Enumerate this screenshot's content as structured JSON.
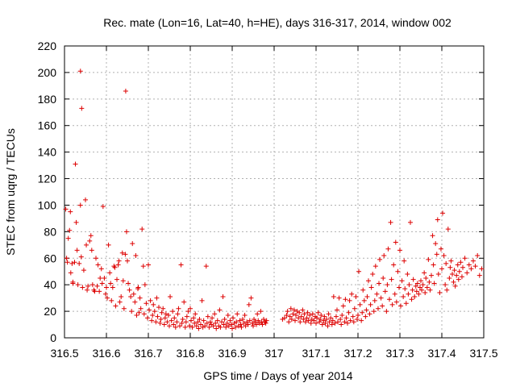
{
  "chart_data": {
    "type": "scatter",
    "title": "Rec. mate (Lon=16, Lat=40, h=HE), days 316-317, 2014, window 002",
    "xlabel": "GPS time / Days of year 2014",
    "ylabel": "STEC from uqrg / TECUs",
    "xlim": [
      316.5,
      317.5
    ],
    "ylim": [
      0,
      220
    ],
    "xticks": [
      316.5,
      316.6,
      316.7,
      316.8,
      316.9,
      317,
      317.1,
      317.2,
      317.3,
      317.4,
      317.5
    ],
    "xtick_labels": [
      "316.5",
      "316.6",
      "316.7",
      "316.8",
      "316.9",
      "317",
      "317.1",
      "317.2",
      "317.3",
      "317.4",
      "317.5"
    ],
    "yticks": [
      0,
      20,
      40,
      60,
      80,
      100,
      120,
      140,
      160,
      180,
      200,
      220
    ],
    "ytick_labels": [
      "0",
      "20",
      "40",
      "60",
      "80",
      "100",
      "120",
      "140",
      "160",
      "180",
      "200",
      "220"
    ],
    "grid": true,
    "marker": "+",
    "color": "#dd0000",
    "points": [
      [
        316.503,
        97
      ],
      [
        316.505,
        60
      ],
      [
        316.507,
        57
      ],
      [
        316.509,
        75
      ],
      [
        316.512,
        81
      ],
      [
        316.514,
        95
      ],
      [
        316.515,
        49
      ],
      [
        316.518,
        56
      ],
      [
        316.52,
        42
      ],
      [
        316.52,
        41
      ],
      [
        316.524,
        57
      ],
      [
        316.526,
        131
      ],
      [
        316.528,
        87
      ],
      [
        316.53,
        66
      ],
      [
        316.532,
        40
      ],
      [
        316.535,
        56
      ],
      [
        316.538,
        100
      ],
      [
        316.538,
        201
      ],
      [
        316.54,
        61
      ],
      [
        316.541,
        173
      ],
      [
        316.543,
        38
      ],
      [
        316.546,
        51
      ],
      [
        316.55,
        104
      ],
      [
        316.552,
        70
      ],
      [
        316.554,
        36
      ],
      [
        316.556,
        39
      ],
      [
        316.56,
        73
      ],
      [
        316.563,
        77
      ],
      [
        316.565,
        66
      ],
      [
        316.567,
        40
      ],
      [
        316.57,
        36
      ],
      [
        316.572,
        35
      ],
      [
        316.575,
        60
      ],
      [
        316.578,
        39
      ],
      [
        316.58,
        55
      ],
      [
        316.583,
        35
      ],
      [
        316.585,
        45
      ],
      [
        316.588,
        52
      ],
      [
        316.59,
        41
      ],
      [
        316.592,
        99
      ],
      [
        316.595,
        45
      ],
      [
        316.598,
        33
      ],
      [
        316.6,
        38
      ],
      [
        316.602,
        30
      ],
      [
        316.605,
        70
      ],
      [
        316.608,
        49
      ],
      [
        316.61,
        41
      ],
      [
        316.612,
        28
      ],
      [
        316.615,
        38
      ],
      [
        316.618,
        54
      ],
      [
        316.62,
        53
      ],
      [
        316.622,
        24
      ],
      [
        316.625,
        44
      ],
      [
        316.628,
        55
      ],
      [
        316.63,
        58
      ],
      [
        316.632,
        27
      ],
      [
        316.635,
        31
      ],
      [
        316.638,
        64
      ],
      [
        316.64,
        43
      ],
      [
        316.642,
        22
      ],
      [
        316.645,
        63
      ],
      [
        316.646,
        186
      ],
      [
        316.648,
        80
      ],
      [
        316.65,
        58
      ],
      [
        316.652,
        41
      ],
      [
        316.655,
        36
      ],
      [
        316.658,
        31
      ],
      [
        316.66,
        20
      ],
      [
        316.662,
        71
      ],
      [
        316.665,
        33
      ],
      [
        316.668,
        27
      ],
      [
        316.67,
        62
      ],
      [
        316.672,
        17
      ],
      [
        316.675,
        37
      ],
      [
        316.676,
        38
      ],
      [
        316.678,
        19
      ],
      [
        316.68,
        30
      ],
      [
        316.682,
        22
      ],
      [
        316.685,
        82
      ],
      [
        316.688,
        54
      ],
      [
        316.69,
        18
      ],
      [
        316.692,
        40
      ],
      [
        316.695,
        26
      ],
      [
        316.698,
        15
      ],
      [
        316.7,
        55
      ],
      [
        316.702,
        21
      ],
      [
        316.705,
        28
      ],
      [
        316.708,
        13
      ],
      [
        316.71,
        17
      ],
      [
        316.712,
        25
      ],
      [
        316.715,
        20
      ],
      [
        316.718,
        12
      ],
      [
        316.72,
        30
      ],
      [
        316.722,
        16
      ],
      [
        316.725,
        23
      ],
      [
        316.728,
        11
      ],
      [
        316.73,
        14
      ],
      [
        316.732,
        19
      ],
      [
        316.735,
        22
      ],
      [
        316.738,
        10
      ],
      [
        316.74,
        15
      ],
      [
        316.742,
        18
      ],
      [
        316.745,
        12
      ],
      [
        316.748,
        17
      ],
      [
        316.75,
        9
      ],
      [
        316.752,
        31
      ],
      [
        316.755,
        13
      ],
      [
        316.758,
        20
      ],
      [
        316.76,
        10
      ],
      [
        316.762,
        15
      ],
      [
        316.765,
        8
      ],
      [
        316.768,
        12
      ],
      [
        316.77,
        18
      ],
      [
        316.772,
        22
      ],
      [
        316.775,
        9
      ],
      [
        316.778,
        55
      ],
      [
        316.78,
        11
      ],
      [
        316.782,
        14
      ],
      [
        316.785,
        27
      ],
      [
        316.788,
        8
      ],
      [
        316.79,
        12
      ],
      [
        316.792,
        16
      ],
      [
        316.795,
        20
      ],
      [
        316.798,
        9
      ],
      [
        316.8,
        22
      ],
      [
        316.802,
        13
      ],
      [
        316.805,
        8
      ],
      [
        316.808,
        15
      ],
      [
        316.81,
        11
      ],
      [
        316.812,
        18
      ],
      [
        316.815,
        9
      ],
      [
        316.818,
        12
      ],
      [
        316.82,
        7
      ],
      [
        316.822,
        14
      ],
      [
        316.825,
        10
      ],
      [
        316.828,
        28
      ],
      [
        316.83,
        8
      ],
      [
        316.832,
        13
      ],
      [
        316.835,
        9
      ],
      [
        316.838,
        54
      ],
      [
        316.84,
        11
      ],
      [
        316.842,
        16
      ],
      [
        316.845,
        8
      ],
      [
        316.848,
        12
      ],
      [
        316.85,
        10
      ],
      [
        316.852,
        15
      ],
      [
        316.855,
        9
      ],
      [
        316.858,
        18
      ],
      [
        316.86,
        11
      ],
      [
        316.862,
        7
      ],
      [
        316.865,
        13
      ],
      [
        316.868,
        9
      ],
      [
        316.87,
        21
      ],
      [
        316.872,
        8
      ],
      [
        316.875,
        12
      ],
      [
        316.878,
        31
      ],
      [
        316.88,
        10
      ],
      [
        316.882,
        14
      ],
      [
        316.885,
        8
      ],
      [
        316.888,
        11
      ],
      [
        316.89,
        17
      ],
      [
        316.892,
        9
      ],
      [
        316.895,
        13
      ],
      [
        316.898,
        10
      ],
      [
        316.9,
        7
      ],
      [
        316.902,
        15
      ],
      [
        316.905,
        11
      ],
      [
        316.908,
        8
      ],
      [
        316.91,
        12
      ],
      [
        316.912,
        18
      ],
      [
        316.915,
        9
      ],
      [
        316.918,
        13
      ],
      [
        316.92,
        10
      ],
      [
        316.922,
        8
      ],
      [
        316.925,
        14
      ],
      [
        316.928,
        11
      ],
      [
        316.93,
        17
      ],
      [
        316.932,
        9
      ],
      [
        316.935,
        12
      ],
      [
        316.938,
        10
      ],
      [
        316.94,
        25
      ],
      [
        316.942,
        13
      ],
      [
        316.945,
        30
      ],
      [
        316.948,
        11
      ],
      [
        316.95,
        9
      ],
      [
        316.952,
        14
      ],
      [
        316.955,
        12
      ],
      [
        316.958,
        10
      ],
      [
        316.96,
        18
      ],
      [
        316.962,
        13
      ],
      [
        316.965,
        11
      ],
      [
        316.968,
        20
      ],
      [
        316.97,
        12
      ],
      [
        316.972,
        10
      ],
      [
        316.975,
        14
      ],
      [
        316.978,
        12
      ],
      [
        316.98,
        11
      ],
      [
        316.982,
        13
      ],
      [
        317.02,
        14
      ],
      [
        317.025,
        15
      ],
      [
        317.03,
        17
      ],
      [
        317.032,
        20
      ],
      [
        317.035,
        12
      ],
      [
        317.038,
        16
      ],
      [
        317.04,
        22
      ],
      [
        317.042,
        14
      ],
      [
        317.045,
        18
      ],
      [
        317.048,
        21
      ],
      [
        317.05,
        13
      ],
      [
        317.052,
        17
      ],
      [
        317.055,
        20
      ],
      [
        317.058,
        15
      ],
      [
        317.06,
        19
      ],
      [
        317.062,
        12
      ],
      [
        317.065,
        16
      ],
      [
        317.068,
        21
      ],
      [
        317.07,
        14
      ],
      [
        317.072,
        18
      ],
      [
        317.075,
        12
      ],
      [
        317.078,
        15
      ],
      [
        317.08,
        19
      ],
      [
        317.082,
        13
      ],
      [
        317.085,
        17
      ],
      [
        317.088,
        11
      ],
      [
        317.09,
        14
      ],
      [
        317.092,
        18
      ],
      [
        317.095,
        13
      ],
      [
        317.098,
        16
      ],
      [
        317.1,
        11
      ],
      [
        317.102,
        15
      ],
      [
        317.105,
        19
      ],
      [
        317.108,
        12
      ],
      [
        317.11,
        14
      ],
      [
        317.112,
        17
      ],
      [
        317.115,
        10
      ],
      [
        317.118,
        13
      ],
      [
        317.12,
        16
      ],
      [
        317.122,
        11
      ],
      [
        317.125,
        14
      ],
      [
        317.128,
        9
      ],
      [
        317.13,
        18
      ],
      [
        317.132,
        12
      ],
      [
        317.135,
        15
      ],
      [
        317.138,
        10
      ],
      [
        317.14,
        13
      ],
      [
        317.142,
        31
      ],
      [
        317.145,
        11
      ],
      [
        317.148,
        16
      ],
      [
        317.15,
        21
      ],
      [
        317.152,
        12
      ],
      [
        317.155,
        30
      ],
      [
        317.158,
        14
      ],
      [
        317.16,
        10
      ],
      [
        317.162,
        17
      ],
      [
        317.165,
        24
      ],
      [
        317.168,
        12
      ],
      [
        317.17,
        29
      ],
      [
        317.172,
        15
      ],
      [
        317.175,
        11
      ],
      [
        317.178,
        19
      ],
      [
        317.18,
        28
      ],
      [
        317.182,
        13
      ],
      [
        317.185,
        33
      ],
      [
        317.188,
        16
      ],
      [
        317.19,
        12
      ],
      [
        317.192,
        22
      ],
      [
        317.195,
        31
      ],
      [
        317.198,
        14
      ],
      [
        317.2,
        17
      ],
      [
        317.202,
        50
      ],
      [
        317.205,
        25
      ],
      [
        317.208,
        13
      ],
      [
        317.21,
        19
      ],
      [
        317.212,
        36
      ],
      [
        317.215,
        28
      ],
      [
        317.218,
        16
      ],
      [
        317.22,
        21
      ],
      [
        317.222,
        31
      ],
      [
        317.225,
        43
      ],
      [
        317.228,
        18
      ],
      [
        317.23,
        25
      ],
      [
        317.232,
        38
      ],
      [
        317.235,
        48
      ],
      [
        317.238,
        20
      ],
      [
        317.24,
        28
      ],
      [
        317.242,
        54
      ],
      [
        317.245,
        33
      ],
      [
        317.248,
        22
      ],
      [
        317.25,
        41
      ],
      [
        317.252,
        59
      ],
      [
        317.255,
        30
      ],
      [
        317.258,
        24
      ],
      [
        317.26,
        45
      ],
      [
        317.262,
        62
      ],
      [
        317.265,
        35
      ],
      [
        317.268,
        20
      ],
      [
        317.27,
        40
      ],
      [
        317.272,
        67
      ],
      [
        317.275,
        29
      ],
      [
        317.278,
        87
      ],
      [
        317.28,
        44
      ],
      [
        317.282,
        25
      ],
      [
        317.285,
        55
      ],
      [
        317.288,
        33
      ],
      [
        317.29,
        72
      ],
      [
        317.292,
        27
      ],
      [
        317.295,
        50
      ],
      [
        317.298,
        38
      ],
      [
        317.3,
        66
      ],
      [
        317.302,
        24
      ],
      [
        317.305,
        43
      ],
      [
        317.308,
        31
      ],
      [
        317.31,
        58
      ],
      [
        317.312,
        37
      ],
      [
        317.315,
        26
      ],
      [
        317.318,
        48
      ],
      [
        317.32,
        33
      ],
      [
        317.322,
        40
      ],
      [
        317.325,
        87
      ],
      [
        317.328,
        29
      ],
      [
        317.33,
        36
      ],
      [
        317.332,
        44
      ],
      [
        317.335,
        31
      ],
      [
        317.338,
        39
      ],
      [
        317.34,
        35
      ],
      [
        317.342,
        41
      ],
      [
        317.345,
        33
      ],
      [
        317.348,
        38
      ],
      [
        317.35,
        43
      ],
      [
        317.352,
        36
      ],
      [
        317.355,
        40
      ],
      [
        317.358,
        49
      ],
      [
        317.36,
        34
      ],
      [
        317.362,
        45
      ],
      [
        317.365,
        38
      ],
      [
        317.368,
        59
      ],
      [
        317.37,
        42
      ],
      [
        317.372,
        36
      ],
      [
        317.375,
        47
      ],
      [
        317.378,
        77
      ],
      [
        317.38,
        55
      ],
      [
        317.382,
        41
      ],
      [
        317.385,
        71
      ],
      [
        317.388,
        63
      ],
      [
        317.39,
        89
      ],
      [
        317.392,
        48
      ],
      [
        317.395,
        34
      ],
      [
        317.398,
        67
      ],
      [
        317.4,
        52
      ],
      [
        317.402,
        94
      ],
      [
        317.405,
        62
      ],
      [
        317.408,
        40
      ],
      [
        317.41,
        56
      ],
      [
        317.412,
        36
      ],
      [
        317.415,
        82
      ],
      [
        317.418,
        45
      ],
      [
        317.42,
        53
      ],
      [
        317.422,
        58
      ],
      [
        317.425,
        48
      ],
      [
        317.428,
        42
      ],
      [
        317.43,
        51
      ],
      [
        317.432,
        39
      ],
      [
        317.435,
        47
      ],
      [
        317.438,
        55
      ],
      [
        317.44,
        44
      ],
      [
        317.442,
        50
      ],
      [
        317.445,
        57
      ],
      [
        317.448,
        46
      ],
      [
        317.45,
        53
      ],
      [
        317.455,
        60
      ],
      [
        317.46,
        49
      ],
      [
        317.465,
        55
      ],
      [
        317.47,
        52
      ],
      [
        317.475,
        58
      ],
      [
        317.48,
        54
      ],
      [
        317.485,
        62
      ],
      [
        317.49,
        47
      ],
      [
        317.495,
        52
      ]
    ]
  }
}
